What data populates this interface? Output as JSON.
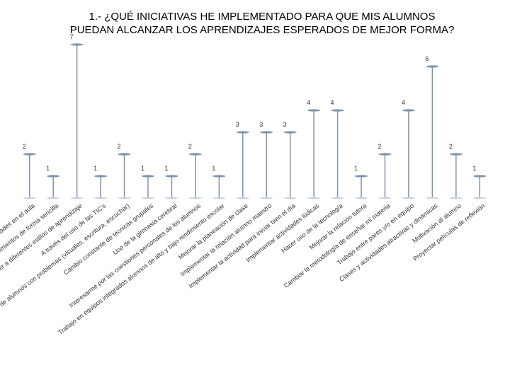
{
  "chart_data": {
    "type": "lollipop",
    "title": [
      "1.- ¿QUÉ INICIATIVAS HE IMPLEMENTADO PARA QUE MIS ALUMNOS",
      "PUEDAN ALCANZAR LOS APRENDIZAJES ESPERADOS DE MEJOR FORMA?"
    ],
    "categories": [
      "Actividades en el aula",
      "Explicar los conocimientos de forma sencilla",
      "Atender a diferentes estilos de aprendizaje",
      "A través del uso de las TIC's",
      "Atención de alumnos con problemas (visuales, escritura, escuchar)",
      "Cambio constante de técnicas grupales",
      "Uso de la gimnasia cerebral",
      "Interesarme por las cuestiones personales de los alumnos",
      "Trabajo en equipos integrados alumnos de alto y bajo rendimiento escolar",
      "Mejorar la planeación de clase",
      "Implementar la relación alumno maestro",
      "Implementar la actividad para iniciar bien el día",
      "Implementar actividades lúdicas",
      "Hacer uso de la tecnología",
      "Mejorar la relación tutora",
      "Cambiar la metodología de enseñar mi materia",
      "Trabajo entre pares y/o en equipo",
      "Clases y actividades atractivas y dinámicas",
      "Motivación al alumno",
      "Proyectar películas de reflexión"
    ],
    "values": [
      2,
      1,
      7,
      1,
      2,
      1,
      1,
      2,
      1,
      3,
      3,
      3,
      4,
      4,
      1,
      2,
      4,
      6,
      2,
      1
    ],
    "color": "#7f93ad",
    "ylim": [
      0,
      7
    ]
  }
}
